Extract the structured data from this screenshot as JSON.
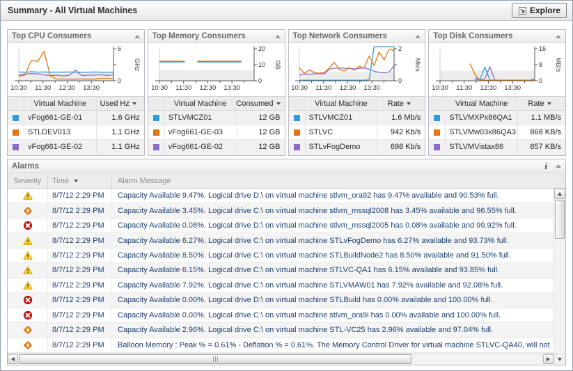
{
  "header": {
    "title": "Summary - All Virtual Machines",
    "explore_label": "Explore"
  },
  "colors": {
    "series": {
      "blue": "#2e9ce1",
      "orange": "#e5760f",
      "purple": "#8b6cc9"
    },
    "severity": {
      "warning": "#ffd54a",
      "critical": "#ee8012",
      "fatal": "#cf1d1d"
    },
    "chart_band": "#ececec"
  },
  "panels": [
    {
      "id": "cpu",
      "title": "Top CPU Consumers",
      "vm_column": "Virtual Machine",
      "value_column": "Used Hz",
      "rows": [
        {
          "series": "blue",
          "name": "vFog661-GE-01",
          "value": "1.6 GHz"
        },
        {
          "series": "orange",
          "name": "STLDEV013",
          "value": "1.1 GHz"
        },
        {
          "series": "purple",
          "name": "vFog661-GE-02",
          "value": "1.1 GHz"
        }
      ],
      "chart": {
        "type": "line",
        "unit": "GHz",
        "ylim": [
          0,
          6
        ],
        "band_top": 1.5,
        "y_ticks": [
          {
            "v": 0,
            "label": "0"
          },
          {
            "v": 3,
            "label": ""
          },
          {
            "v": 6,
            "label": "6"
          }
        ],
        "x_labels": [
          "10:30",
          "11:30",
          "12:30",
          "13:30"
        ],
        "series": [
          {
            "color": "blue",
            "name": "vFog661-GE-01",
            "values": [
              1.65,
              1.6,
              1.7,
              1.62,
              1.65,
              1.6,
              1.63,
              1.6,
              1.65,
              1.6,
              1.62,
              1.6,
              1.65,
              1.6,
              1.62,
              1.6
            ]
          },
          {
            "color": "orange",
            "name": "STLDEV013",
            "values": [
              0.85,
              1.1,
              3.85,
              3.6,
              5.5,
              0.9,
              0.3,
              0.32,
              0.3,
              0.3,
              0.32,
              0.3,
              0.3,
              0.4,
              0.45,
              0.3
            ]
          },
          {
            "color": "purple",
            "name": "vFog661-GE-02",
            "values": [
              1.0,
              1.25,
              1.35,
              1.28,
              1.1,
              0.95,
              1.05,
              0.9,
              1.0,
              2.0,
              0.95,
              1.05,
              1.05,
              1.12,
              1.0,
              1.1
            ]
          }
        ]
      }
    },
    {
      "id": "memory",
      "title": "Top Memory Consumers",
      "vm_column": "Virtual Machine",
      "value_column": "Consumed",
      "rows": [
        {
          "series": "blue",
          "name": "STLVMCZ01",
          "value": "12 GB"
        },
        {
          "series": "orange",
          "name": "vFog661-GE-03",
          "value": "12 GB"
        },
        {
          "series": "purple",
          "name": "vFog661-GE-02",
          "value": "12 GB"
        }
      ],
      "chart": {
        "type": "line",
        "unit": "GB",
        "ylim": [
          0,
          20
        ],
        "band_top": 6.5,
        "y_ticks": [
          {
            "v": 0,
            "label": "0"
          },
          {
            "v": 10,
            "label": "10"
          },
          {
            "v": 20,
            "label": "20"
          }
        ],
        "x_labels": [
          "10:30",
          "11:30",
          "12:30",
          "13:30"
        ],
        "series": [
          {
            "color": "blue",
            "name": "STLVMCZ01",
            "values": [
              11.7,
              11.7,
              11.7,
              11.7,
              11.7,
              null,
              11.7,
              11.7,
              11.7,
              11.7,
              11.7,
              11.7,
              11.7,
              11.7,
              null,
              11.7
            ]
          },
          {
            "color": "purple",
            "name": "vFog661-GE-02",
            "values": [
              11.95,
              11.95,
              11.95,
              11.95,
              11.95,
              null,
              11.95,
              11.95,
              11.95,
              11.95,
              11.95,
              11.95,
              11.95,
              11.95,
              null,
              11.95
            ]
          },
          {
            "color": "orange",
            "name": "vFog661-GE-03",
            "values": [
              12.2,
              12.2,
              12.2,
              12.2,
              12.2,
              null,
              12.2,
              12.2,
              12.2,
              12.2,
              12.2,
              12.2,
              12.2,
              12.2,
              null,
              12.2
            ]
          }
        ]
      }
    },
    {
      "id": "network",
      "title": "Top Network Consumers",
      "vm_column": "Virtual Machine",
      "value_column": "Rate",
      "rows": [
        {
          "series": "blue",
          "name": "STLVMCZ01",
          "value": "1.6 Mb/s"
        },
        {
          "series": "orange",
          "name": "STLVC",
          "value": "942 Kb/s"
        },
        {
          "series": "purple",
          "name": "STLvFogDemo",
          "value": "698 Kb/s"
        }
      ],
      "chart": {
        "type": "line",
        "unit": "Mb/s",
        "ylim": [
          0,
          2
        ],
        "band_top": 0.55,
        "y_ticks": [
          {
            "v": 0,
            "label": "0"
          },
          {
            "v": 1,
            "label": ""
          },
          {
            "v": 2,
            "label": "2"
          }
        ],
        "x_labels": [
          "10:30",
          "11:30",
          "12:30",
          "13:30"
        ],
        "series": [
          {
            "color": "blue",
            "name": "STLVMCZ01",
            "values": [
              0.03,
              0.03,
              0.03,
              0.03,
              0.03,
              0.03,
              0.03,
              0.03,
              0.03,
              0.03,
              0.03,
              0.03,
              0.03,
              0.03,
              0.06,
              2.4,
              2.4,
              2.4,
              2.4,
              2.4
            ]
          },
          {
            "color": "orange",
            "name": "STLVC",
            "values": [
              0.8,
              0.45,
              0.68,
              0.5,
              0.46,
              0.52,
              0.78,
              1.15,
              0.72,
              0.6,
              0.82,
              0.66,
              0.9,
              0.8,
              1.55,
              0.95,
              1.8,
              1.3,
              1.95,
              1.9
            ]
          },
          {
            "color": "purple",
            "name": "STLvFogDemo",
            "values": [
              0.34,
              0.42,
              0.4,
              0.43,
              0.45,
              0.42,
              0.72,
              0.78,
              0.8,
              0.78,
              0.76,
              0.74,
              0.77,
              0.8,
              0.72,
              0.6,
              0.52,
              0.5,
              0.55,
              0.92
            ]
          }
        ]
      }
    },
    {
      "id": "disk",
      "title": "Top Disk Consumers",
      "vm_column": "Virtual Machine",
      "value_column": "Rate",
      "rows": [
        {
          "series": "blue",
          "name": "STLVMXPx86QA1",
          "value": "1.1 MB/s"
        },
        {
          "series": "orange",
          "name": "STLVMw03x86QA3",
          "value": "868 KB/s"
        },
        {
          "series": "purple",
          "name": "STLVMVistax86",
          "value": "857 KB/s"
        }
      ],
      "chart": {
        "type": "line",
        "unit": "MB/s",
        "ylim": [
          0,
          16
        ],
        "band_top": 5,
        "y_ticks": [
          {
            "v": 0,
            "label": "0"
          },
          {
            "v": 8,
            "label": "8"
          },
          {
            "v": 16,
            "label": "16"
          }
        ],
        "x_labels": [
          "10:30",
          "11:30",
          "12:30",
          "13:30"
        ],
        "series": [
          {
            "color": "blue",
            "name": "STLVMXPx86QA1",
            "values": [
              null,
              null,
              null,
              null,
              null,
              null,
              null,
              1.4,
              0.5,
              6.9,
              0.4,
              0.2,
              0.2,
              0.2,
              0.2,
              0.2,
              0.2,
              0.2,
              0.2,
              0.2
            ]
          },
          {
            "color": "orange",
            "name": "STLVMw03x86QA3",
            "values": [
              null,
              null,
              null,
              null,
              null,
              null,
              8.6,
              3.2,
              0.3,
              0.2,
              0.2,
              0.2,
              0.2,
              0.2,
              0.2,
              0.2,
              0.2,
              0.2,
              0.2,
              0.25
            ]
          },
          {
            "color": "purple",
            "name": "STLVMVistax86",
            "values": [
              null,
              null,
              null,
              null,
              null,
              null,
              null,
              0.9,
              0.4,
              1.0,
              7.0,
              0.35,
              0.2,
              0.2,
              0.2,
              0.2,
              0.2,
              0.2,
              0.2,
              0.9
            ]
          }
        ]
      }
    }
  ],
  "alarms": {
    "title": "Alarms",
    "info_glyph": "i",
    "columns": [
      "Severity",
      "Time",
      "Alarm Message"
    ],
    "rows": [
      {
        "severity": "warning",
        "time": "8/7/12 2:29 PM",
        "message": "Capacity Available 9.47%. Logical drive D:\\ on virtual machine stlvm_ora92 has 9.47% available and 90.53% full."
      },
      {
        "severity": "critical",
        "time": "8/7/12 2:29 PM",
        "message": "Capacity Available 3.45%. Logical drive C:\\ on virtual machine stlvm_mssql2008 has 3.45% available and 96.55% full."
      },
      {
        "severity": "fatal",
        "time": "8/7/12 2:29 PM",
        "message": "Capacity Available 0.08%. Logical drive D:\\ on virtual machine stlvm_mssql2005 has 0.08% available and 99.92% full."
      },
      {
        "severity": "warning",
        "time": "8/7/12 2:29 PM",
        "message": "Capacity Available 6.27%. Logical drive C:\\ on virtual machine STLvFogDemo has 6.27% available and 93.73% full."
      },
      {
        "severity": "warning",
        "time": "8/7/12 2:29 PM",
        "message": "Capacity Available 8.50%. Logical drive C:\\ on virtual machine STLBuildNode2 has 8.50% available and 91.50% full."
      },
      {
        "severity": "warning",
        "time": "8/7/12 2:29 PM",
        "message": "Capacity Available 6.15%. Logical drive C:\\ on virtual machine STLVC-QA1 has 6.15% available and 93.85% full."
      },
      {
        "severity": "warning",
        "time": "8/7/12 2:29 PM",
        "message": "Capacity Available 7.92%. Logical drive C:\\ on virtual machine STLVMAW01 has 7.92% available and 92.08% full."
      },
      {
        "severity": "fatal",
        "time": "8/7/12 2:29 PM",
        "message": "Capacity Available 0.00%. Logical drive D:\\ on virtual machine STLBuild has 0.00% available and 100.00% full."
      },
      {
        "severity": "fatal",
        "time": "8/7/12 2:29 PM",
        "message": "Capacity Available 0.00%. Logical drive C:\\ on virtual machine stlvm_ora9i has 0.00% available and 100.00% full."
      },
      {
        "severity": "critical",
        "time": "8/7/12 2:29 PM",
        "message": "Capacity Available 2.96%. Logical drive C:\\ on virtual machine STL-VC25 has 2.96% available and 97.04% full."
      },
      {
        "severity": "critical",
        "time": "8/7/12 2:29 PM",
        "message": "Balloon Memory : Peak % = 0.61% - Deflation % = 0.61%. The Memory Control Driver for virtual machine STLVC-QA40, will not"
      }
    ]
  }
}
